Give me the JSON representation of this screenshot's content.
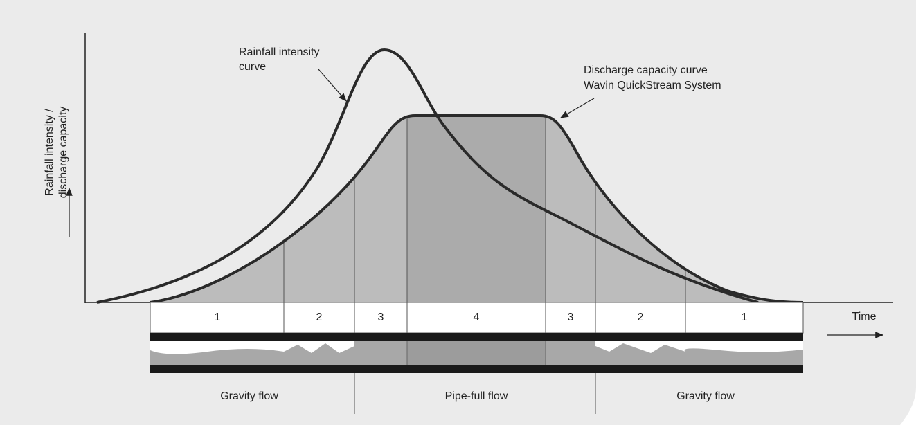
{
  "y_axis_label": [
    "Rainfall intensity /",
    "discharge capacity"
  ],
  "x_axis_label": "Time",
  "annotations": {
    "rainfall": [
      "Rainfall intensity",
      "curve"
    ],
    "discharge": [
      "Discharge capacity curve",
      "Wavin QuickStream System"
    ]
  },
  "zones": [
    "1",
    "2",
    "3",
    "4",
    "3",
    "2",
    "1"
  ],
  "flow_regimes": [
    "Gravity flow",
    "Pipe-full flow",
    "Gravity flow"
  ]
}
